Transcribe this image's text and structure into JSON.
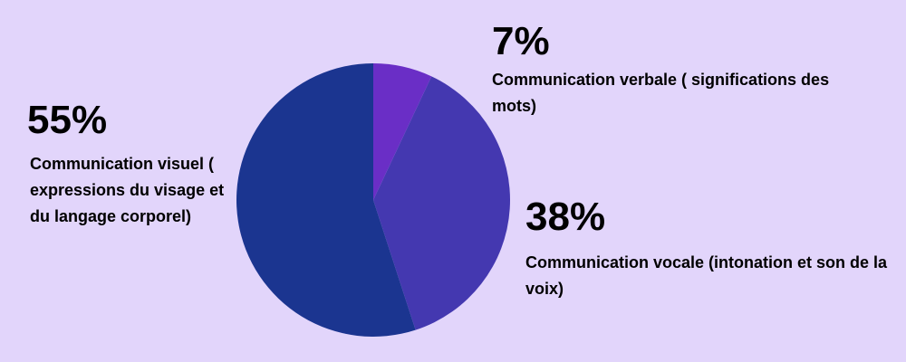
{
  "chart_data": {
    "type": "pie",
    "title": "",
    "slices": [
      {
        "label": "Communication verbale ( significations des mots)",
        "value": 7,
        "value_label": "7%",
        "color": "#6a2ec6"
      },
      {
        "label": "Communication vocale (intonation et son de la voix)",
        "value": 38,
        "value_label": "38%",
        "color": "#4438b0"
      },
      {
        "label": "Communication visuel ( expressions du visage et du langage corporel)",
        "value": 55,
        "value_label": "55%",
        "color": "#1b3590"
      }
    ],
    "start_angle": "top",
    "direction": "clockwise"
  },
  "background_color": "#e2d5fb"
}
